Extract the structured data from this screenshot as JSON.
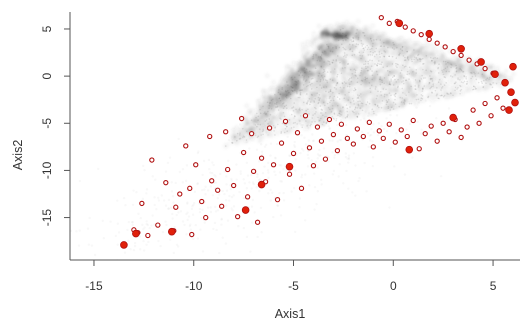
{
  "chart_data": {
    "type": "scatter",
    "title": "",
    "xlabel": "Axis1",
    "ylabel": "Axis2",
    "xlim": [
      -15.6,
      6.2
    ],
    "ylim": [
      -19.5,
      6.8
    ],
    "xticks": [
      -15,
      -10,
      -5,
      0,
      5
    ],
    "yticks": [
      5,
      0,
      -5,
      -10,
      -15
    ],
    "xtick_labels": [
      "-15",
      "-10",
      "-5",
      "0",
      "5"
    ],
    "ytick_labels": [
      "5",
      "0",
      "-5",
      "-10",
      "-15"
    ],
    "grid": false,
    "legend": "none",
    "colors": {
      "density": "#3a3a3a",
      "point_outline": "#b01010",
      "point_fill": "#ffffff",
      "point_solid": "#e0200a",
      "axis": "#555555"
    },
    "series": [
      {
        "values": [
          {
            "x": -13.5,
            "y": -17.9
          },
          {
            "x": -13.0,
            "y": -16.3
          },
          {
            "x": -12.8,
            "y": -16.6
          },
          {
            "x": -12.6,
            "y": -13.5
          },
          {
            "x": -12.3,
            "y": -16.9
          },
          {
            "x": -12.1,
            "y": -8.9
          },
          {
            "x": -11.8,
            "y": -15.8
          },
          {
            "x": -11.4,
            "y": -11.3
          },
          {
            "x": -11.0,
            "y": -16.4
          },
          {
            "x": -10.9,
            "y": -13.9
          },
          {
            "x": -10.7,
            "y": -12.5
          },
          {
            "x": -10.4,
            "y": -7.4
          },
          {
            "x": -10.2,
            "y": -11.9
          },
          {
            "x": -10.1,
            "y": -16.8
          },
          {
            "x": -9.9,
            "y": -9.4
          },
          {
            "x": -9.6,
            "y": -13.3
          },
          {
            "x": -9.4,
            "y": -15.0
          },
          {
            "x": -9.2,
            "y": -6.4
          },
          {
            "x": -9.1,
            "y": -11.1
          },
          {
            "x": -8.8,
            "y": -12.1
          },
          {
            "x": -8.6,
            "y": -13.8
          },
          {
            "x": -8.4,
            "y": -5.9
          },
          {
            "x": -8.3,
            "y": -9.9
          },
          {
            "x": -8.0,
            "y": -11.6
          },
          {
            "x": -7.8,
            "y": -14.9
          },
          {
            "x": -7.6,
            "y": -4.5
          },
          {
            "x": -7.5,
            "y": -8.1
          },
          {
            "x": -7.3,
            "y": -12.8
          },
          {
            "x": -7.1,
            "y": -6.1
          },
          {
            "x": -7.0,
            "y": -10.1
          },
          {
            "x": -6.8,
            "y": -15.5
          },
          {
            "x": -6.6,
            "y": -8.7
          },
          {
            "x": -6.4,
            "y": -11.2
          },
          {
            "x": -6.2,
            "y": -5.5
          },
          {
            "x": -6.0,
            "y": -9.4
          },
          {
            "x": -5.8,
            "y": -13.1
          },
          {
            "x": -5.6,
            "y": -7.1
          },
          {
            "x": -5.4,
            "y": -4.8
          },
          {
            "x": -5.2,
            "y": -10.4
          },
          {
            "x": -5.0,
            "y": -8.2
          },
          {
            "x": -4.8,
            "y": -6.0
          },
          {
            "x": -4.6,
            "y": -11.9
          },
          {
            "x": -4.4,
            "y": -4.2
          },
          {
            "x": -4.2,
            "y": -7.6
          },
          {
            "x": -4.0,
            "y": -9.5
          },
          {
            "x": -3.8,
            "y": -5.4
          },
          {
            "x": -3.6,
            "y": -6.9
          },
          {
            "x": -3.4,
            "y": -8.8
          },
          {
            "x": -3.2,
            "y": -4.6
          },
          {
            "x": -3.0,
            "y": -6.2
          },
          {
            "x": -2.8,
            "y": -7.9
          },
          {
            "x": -2.6,
            "y": -5.1
          },
          {
            "x": -2.3,
            "y": -6.6
          },
          {
            "x": -2.0,
            "y": -7.2
          },
          {
            "x": -1.8,
            "y": -5.6
          },
          {
            "x": -1.5,
            "y": -6.4
          },
          {
            "x": -1.2,
            "y": -4.9
          },
          {
            "x": -1.0,
            "y": -7.5
          },
          {
            "x": -0.7,
            "y": -5.8
          },
          {
            "x": -0.5,
            "y": -6.6
          },
          {
            "x": -0.2,
            "y": -5.1
          },
          {
            "x": 0.1,
            "y": -7.0
          },
          {
            "x": 0.4,
            "y": -5.7
          },
          {
            "x": 0.7,
            "y": -6.4
          },
          {
            "x": 1.0,
            "y": -4.7
          },
          {
            "x": 1.3,
            "y": -7.7
          },
          {
            "x": 1.6,
            "y": -6.1
          },
          {
            "x": 1.9,
            "y": -5.3
          },
          {
            "x": 2.2,
            "y": -6.9
          },
          {
            "x": 2.5,
            "y": -5.0
          },
          {
            "x": 2.8,
            "y": -5.9
          },
          {
            "x": 3.1,
            "y": -4.6
          },
          {
            "x": 3.4,
            "y": -6.5
          },
          {
            "x": 3.7,
            "y": -5.4
          },
          {
            "x": 4.0,
            "y": -3.6
          },
          {
            "x": 4.3,
            "y": -5.0
          },
          {
            "x": 4.6,
            "y": -2.9
          },
          {
            "x": 4.9,
            "y": -4.2
          },
          {
            "x": 5.2,
            "y": -2.3
          },
          {
            "x": 5.5,
            "y": -3.4
          },
          {
            "x": -0.6,
            "y": 6.2
          },
          {
            "x": -0.2,
            "y": 5.6
          },
          {
            "x": 0.2,
            "y": 5.8
          },
          {
            "x": 0.6,
            "y": 5.2
          },
          {
            "x": 1.0,
            "y": 4.8
          },
          {
            "x": 1.4,
            "y": 4.4
          },
          {
            "x": 1.8,
            "y": 3.9
          },
          {
            "x": 2.2,
            "y": 3.5
          },
          {
            "x": 2.6,
            "y": 3.1
          },
          {
            "x": 3.0,
            "y": 2.6
          },
          {
            "x": 3.4,
            "y": 2.2
          },
          {
            "x": 3.8,
            "y": 1.7
          },
          {
            "x": 4.2,
            "y": 1.3
          },
          {
            "x": 4.6,
            "y": 0.8
          },
          {
            "x": 5.0,
            "y": 0.3
          }
        ]
      },
      {
        "values": [
          {
            "x": -13.5,
            "y": -17.9
          },
          {
            "x": -12.9,
            "y": -16.7
          },
          {
            "x": -11.1,
            "y": -16.5
          },
          {
            "x": -7.4,
            "y": -14.2
          },
          {
            "x": -6.6,
            "y": -11.5
          },
          {
            "x": -5.2,
            "y": -9.6
          },
          {
            "x": 0.8,
            "y": -7.8
          },
          {
            "x": 3.0,
            "y": -4.4
          },
          {
            "x": 0.3,
            "y": 5.6
          },
          {
            "x": 1.8,
            "y": 4.5
          },
          {
            "x": 3.4,
            "y": 2.9
          },
          {
            "x": 4.4,
            "y": 1.5
          },
          {
            "x": 5.1,
            "y": 0.2
          },
          {
            "x": 5.6,
            "y": -0.7
          },
          {
            "x": 5.9,
            "y": -1.7
          },
          {
            "x": 6.1,
            "y": -2.8
          },
          {
            "x": 5.8,
            "y": -3.6
          },
          {
            "x": 6.0,
            "y": 1.0
          }
        ]
      }
    ]
  }
}
